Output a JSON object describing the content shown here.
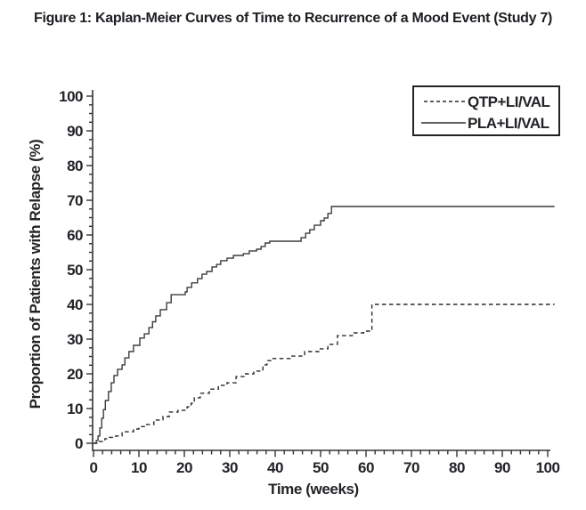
{
  "figure": {
    "title": "Figure 1: Kaplan-Meier Curves of Time to Recurrence of a Mood Event (Study 7)"
  },
  "chart_data": {
    "type": "line",
    "subtype": "kaplan-meier-step",
    "title": "Figure 1: Kaplan-Meier Curves of Time to Recurrence of a Mood Event (Study 7)",
    "xlabel": "Time (weeks)",
    "ylabel": "Proportion of Patients with Relapse (%)",
    "xlim": [
      0,
      101.5
    ],
    "ylim": [
      0,
      100
    ],
    "grid": false,
    "legend_position": "top-right",
    "x_ticks": {
      "major": [
        0,
        10,
        20,
        30,
        40,
        50,
        60,
        70,
        80,
        90,
        100
      ],
      "minor_step": 2
    },
    "y_ticks": {
      "major": [
        0,
        10,
        20,
        30,
        40,
        50,
        60,
        70,
        80,
        90,
        100
      ],
      "minor_step": 2.5
    },
    "series": [
      {
        "name": "QTP+LI/VAL",
        "line_style": "dashed",
        "points": [
          [
            0,
            0
          ],
          [
            1,
            0.5
          ],
          [
            2.5,
            1.3
          ],
          [
            3.5,
            1.7
          ],
          [
            4.9,
            2.1
          ],
          [
            6.3,
            3.3
          ],
          [
            8.8,
            4.1
          ],
          [
            10,
            4.8
          ],
          [
            11.4,
            5.4
          ],
          [
            13.3,
            6.7
          ],
          [
            15.3,
            7.7
          ],
          [
            16.7,
            9
          ],
          [
            18.6,
            9.5
          ],
          [
            20.6,
            10.5
          ],
          [
            21.5,
            11.5
          ],
          [
            22.2,
            13.1
          ],
          [
            23.5,
            14.4
          ],
          [
            25.5,
            15.6
          ],
          [
            27.5,
            16.7
          ],
          [
            29.4,
            17.4
          ],
          [
            31.4,
            19.2
          ],
          [
            33.3,
            20
          ],
          [
            35.3,
            20.8
          ],
          [
            37.3,
            22.6
          ],
          [
            38.2,
            23.8
          ],
          [
            39.2,
            24.4
          ],
          [
            43.7,
            25.1
          ],
          [
            46.5,
            26.4
          ],
          [
            49.6,
            27.2
          ],
          [
            51.6,
            28.5
          ],
          [
            53.7,
            31
          ],
          [
            57,
            31.8
          ],
          [
            59.5,
            32.3
          ],
          [
            61.3,
            40
          ],
          [
            101.5,
            40
          ]
        ]
      },
      {
        "name": "PLA+LI/VAL",
        "line_style": "solid",
        "points": [
          [
            0,
            0
          ],
          [
            0.6,
            0.8
          ],
          [
            1,
            2.1
          ],
          [
            1.4,
            4.4
          ],
          [
            1.8,
            7.2
          ],
          [
            2.2,
            9.7
          ],
          [
            2.6,
            12.3
          ],
          [
            3.3,
            14.9
          ],
          [
            3.9,
            17.4
          ],
          [
            4.5,
            19.5
          ],
          [
            5.3,
            21.3
          ],
          [
            6.3,
            22.6
          ],
          [
            6.9,
            24.6
          ],
          [
            7.8,
            26.4
          ],
          [
            8.8,
            28.2
          ],
          [
            10.2,
            30.3
          ],
          [
            11.2,
            31.5
          ],
          [
            12.2,
            33.3
          ],
          [
            13,
            35
          ],
          [
            13.7,
            36.7
          ],
          [
            14.7,
            38.5
          ],
          [
            16.1,
            40.5
          ],
          [
            17.1,
            42.8
          ],
          [
            20.2,
            43.6
          ],
          [
            20.6,
            44.9
          ],
          [
            21.6,
            46.2
          ],
          [
            22.9,
            47.4
          ],
          [
            23.9,
            48.7
          ],
          [
            24.9,
            49.5
          ],
          [
            26.1,
            50.8
          ],
          [
            27.1,
            51.5
          ],
          [
            28,
            52.6
          ],
          [
            29.4,
            53.3
          ],
          [
            30.8,
            54.1
          ],
          [
            33,
            54.6
          ],
          [
            34.3,
            55.4
          ],
          [
            35.9,
            55.9
          ],
          [
            36.9,
            56.7
          ],
          [
            37.8,
            57.7
          ],
          [
            38.8,
            58.2
          ],
          [
            45.7,
            59.2
          ],
          [
            46.7,
            60.5
          ],
          [
            47.6,
            61.5
          ],
          [
            48.6,
            62.8
          ],
          [
            50,
            64.1
          ],
          [
            50.8,
            64.9
          ],
          [
            51.6,
            66.2
          ],
          [
            52.4,
            68.2
          ],
          [
            101.5,
            68.2
          ]
        ]
      }
    ]
  }
}
